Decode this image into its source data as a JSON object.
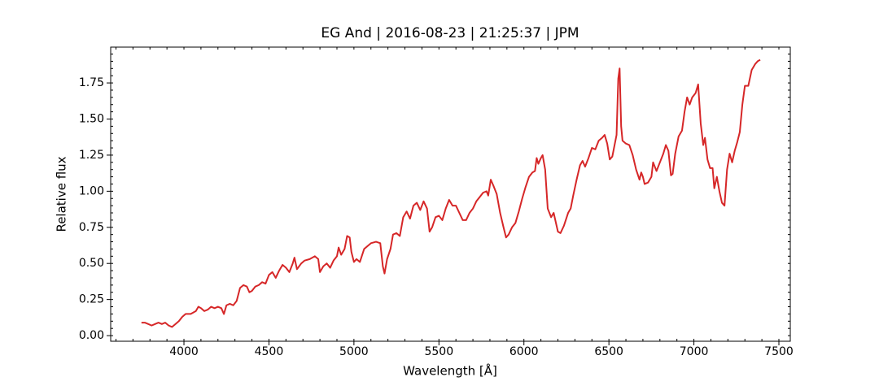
{
  "chart_data": {
    "type": "line",
    "title": "EG And | 2016-08-23 | 21:25:37 | JPM",
    "x_label": "Wavelength [Å]",
    "y_label": "Relative flux",
    "x": [
      3750,
      3770,
      3790,
      3810,
      3830,
      3850,
      3870,
      3890,
      3910,
      3930,
      3950,
      3970,
      3990,
      4010,
      4040,
      4070,
      4085,
      4100,
      4120,
      4140,
      4160,
      4180,
      4200,
      4220,
      4235,
      4250,
      4270,
      4290,
      4310,
      4330,
      4350,
      4370,
      4385,
      4400,
      4420,
      4440,
      4460,
      4480,
      4500,
      4520,
      4540,
      4560,
      4580,
      4600,
      4620,
      4640,
      4650,
      4665,
      4690,
      4710,
      4740,
      4770,
      4790,
      4800,
      4820,
      4840,
      4860,
      4880,
      4900,
      4910,
      4925,
      4945,
      4960,
      4975,
      4985,
      5000,
      5015,
      5035,
      5060,
      5080,
      5100,
      5130,
      5155,
      5170,
      5180,
      5195,
      5215,
      5230,
      5250,
      5270,
      5290,
      5310,
      5330,
      5350,
      5370,
      5390,
      5410,
      5430,
      5445,
      5460,
      5480,
      5500,
      5520,
      5540,
      5560,
      5580,
      5600,
      5620,
      5640,
      5660,
      5680,
      5700,
      5720,
      5740,
      5760,
      5780,
      5790,
      5805,
      5820,
      5840,
      5860,
      5880,
      5895,
      5910,
      5930,
      5950,
      5970,
      5990,
      6010,
      6030,
      6050,
      6065,
      6075,
      6085,
      6100,
      6110,
      6125,
      6140,
      6160,
      6175,
      6200,
      6215,
      6235,
      6260,
      6275,
      6290,
      6310,
      6330,
      6345,
      6360,
      6380,
      6400,
      6420,
      6440,
      6460,
      6475,
      6490,
      6505,
      6520,
      6535,
      6545,
      6555,
      6563,
      6572,
      6580,
      6600,
      6620,
      6640,
      6660,
      6680,
      6690,
      6700,
      6710,
      6730,
      6750,
      6760,
      6780,
      6800,
      6820,
      6835,
      6850,
      6865,
      6875,
      6890,
      6910,
      6930,
      6945,
      6960,
      6975,
      6990,
      7010,
      7025,
      7040,
      7055,
      7065,
      7080,
      7095,
      7110,
      7120,
      7135,
      7150,
      7165,
      7180,
      7195,
      7210,
      7225,
      7240,
      7255,
      7270,
      7285,
      7300,
      7320,
      7340,
      7360,
      7375,
      7390
    ],
    "series": [
      {
        "name": "EG And",
        "color": "#d62728",
        "values": [
          0.09,
          0.09,
          0.08,
          0.07,
          0.08,
          0.09,
          0.08,
          0.09,
          0.07,
          0.06,
          0.08,
          0.1,
          0.13,
          0.15,
          0.15,
          0.17,
          0.2,
          0.19,
          0.17,
          0.18,
          0.2,
          0.19,
          0.2,
          0.19,
          0.15,
          0.21,
          0.22,
          0.21,
          0.24,
          0.33,
          0.35,
          0.34,
          0.3,
          0.31,
          0.34,
          0.35,
          0.37,
          0.36,
          0.42,
          0.44,
          0.4,
          0.45,
          0.49,
          0.47,
          0.44,
          0.5,
          0.54,
          0.46,
          0.5,
          0.52,
          0.53,
          0.55,
          0.53,
          0.44,
          0.48,
          0.5,
          0.47,
          0.52,
          0.55,
          0.61,
          0.56,
          0.6,
          0.69,
          0.68,
          0.58,
          0.51,
          0.53,
          0.51,
          0.6,
          0.62,
          0.64,
          0.65,
          0.64,
          0.48,
          0.43,
          0.53,
          0.6,
          0.7,
          0.71,
          0.69,
          0.82,
          0.86,
          0.81,
          0.9,
          0.92,
          0.87,
          0.93,
          0.88,
          0.72,
          0.75,
          0.82,
          0.83,
          0.8,
          0.88,
          0.94,
          0.9,
          0.9,
          0.85,
          0.8,
          0.8,
          0.85,
          0.88,
          0.93,
          0.96,
          0.99,
          1.0,
          0.97,
          1.08,
          1.04,
          0.98,
          0.85,
          0.75,
          0.68,
          0.7,
          0.75,
          0.78,
          0.86,
          0.95,
          1.03,
          1.1,
          1.13,
          1.14,
          1.23,
          1.19,
          1.23,
          1.25,
          1.15,
          0.88,
          0.82,
          0.85,
          0.72,
          0.71,
          0.76,
          0.85,
          0.88,
          0.97,
          1.08,
          1.18,
          1.21,
          1.17,
          1.23,
          1.3,
          1.29,
          1.35,
          1.37,
          1.39,
          1.33,
          1.22,
          1.24,
          1.33,
          1.39,
          1.78,
          1.85,
          1.45,
          1.35,
          1.33,
          1.32,
          1.25,
          1.15,
          1.08,
          1.13,
          1.1,
          1.05,
          1.06,
          1.1,
          1.2,
          1.14,
          1.2,
          1.26,
          1.32,
          1.28,
          1.11,
          1.12,
          1.26,
          1.38,
          1.42,
          1.55,
          1.65,
          1.6,
          1.65,
          1.68,
          1.74,
          1.47,
          1.32,
          1.37,
          1.22,
          1.16,
          1.16,
          1.02,
          1.1,
          1.0,
          0.92,
          0.9,
          1.15,
          1.26,
          1.2,
          1.28,
          1.34,
          1.41,
          1.6,
          1.73,
          1.73,
          1.84,
          1.88,
          1.9,
          1.91
        ]
      }
    ],
    "xlim": [
      3569,
      7567
    ],
    "ylim": [
      -0.039,
      1.998
    ],
    "xticks": [
      4000,
      4500,
      5000,
      5500,
      6000,
      6500,
      7000,
      7500
    ],
    "yticks": [
      {
        "value": 0,
        "label": "0.00"
      },
      {
        "value": 0.25,
        "label": "0.25"
      },
      {
        "value": 0.5,
        "label": "0.50"
      },
      {
        "value": 0.75,
        "label": "0.75"
      },
      {
        "value": 1,
        "label": "1.00"
      },
      {
        "value": 1.25,
        "label": "1.25"
      },
      {
        "value": 1.5,
        "label": "1.50"
      },
      {
        "value": 1.75,
        "label": "1.75"
      }
    ],
    "xticks_minor": [
      3600,
      3700,
      3800,
      3900,
      4000,
      4100,
      4200,
      4300,
      4400,
      4500,
      4600,
      4700,
      4800,
      4900,
      5000,
      5100,
      5200,
      5300,
      5400,
      5500,
      5600,
      5700,
      5800,
      5900,
      6000,
      6100,
      6200,
      6300,
      6400,
      6500,
      6600,
      6700,
      6800,
      6900,
      7000,
      7100,
      7200,
      7300,
      7400,
      7500
    ],
    "yticks_minor": [
      0,
      0.05,
      0.1,
      0.15,
      0.2,
      0.25,
      0.3,
      0.35,
      0.4,
      0.45,
      0.5,
      0.55,
      0.6,
      0.65,
      0.7,
      0.75,
      0.8,
      0.85,
      0.9,
      0.95,
      1,
      1.05,
      1.1,
      1.15,
      1.2,
      1.25,
      1.3,
      1.35,
      1.4,
      1.45,
      1.5,
      1.55,
      1.6,
      1.65,
      1.7,
      1.75,
      1.8,
      1.85,
      1.9,
      1.95
    ],
    "grid": false
  }
}
